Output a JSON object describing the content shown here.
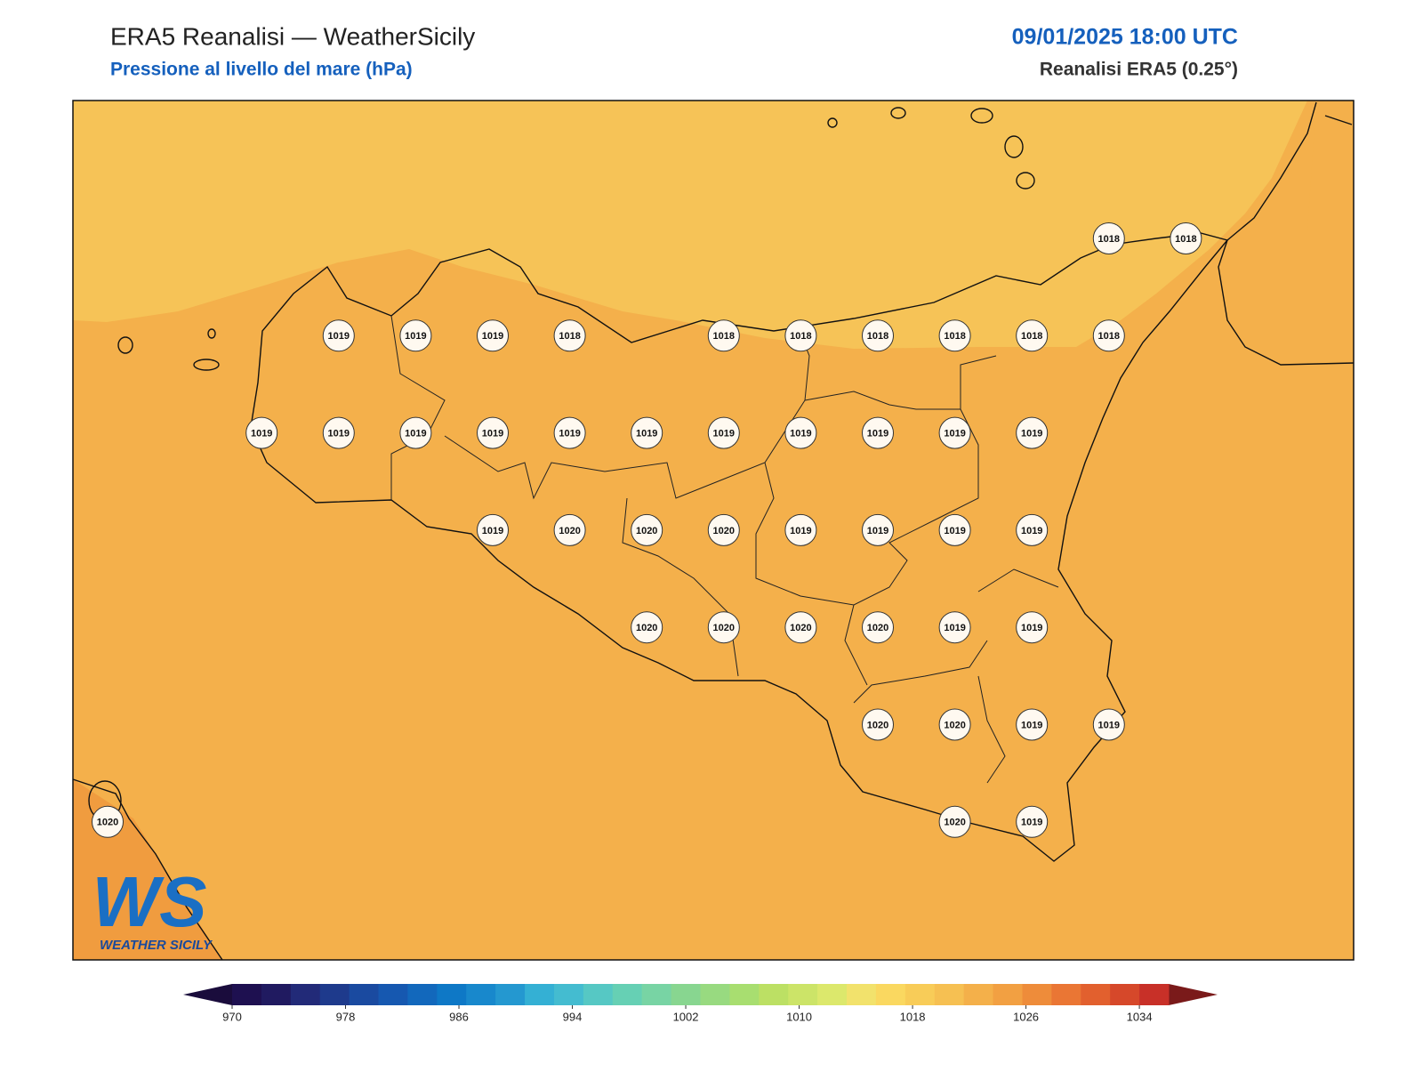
{
  "header": {
    "title": "ERA5 Reanalisi — WeatherSicily",
    "subtitle": "Pressione al livello del mare (hPa)",
    "datetime": "09/01/2025 18:00 UTC",
    "source": "Reanalisi ERA5 (0.25°)"
  },
  "pressure_labels": [
    1018,
    1018,
    1019,
    1019,
    1019,
    1018,
    1018,
    1018,
    1018,
    1018,
    1018,
    1018,
    1019,
    1019,
    1019,
    1019,
    1019,
    1019,
    1019,
    1019,
    1019,
    1019,
    1019,
    1019,
    1020,
    1020,
    1020,
    1019,
    1019,
    1019,
    1019,
    1020,
    1020,
    1020,
    1020,
    1019,
    1019,
    1020,
    1020,
    1019,
    1019,
    1020,
    1020,
    1019
  ],
  "colorbar": {
    "lim": [
      970,
      1034
    ],
    "ticks": [
      970,
      978,
      986,
      994,
      1002,
      1010,
      1018,
      1026,
      1034
    ],
    "colors": [
      "#1e1050",
      "#201a60",
      "#222a78",
      "#1e3a8c",
      "#1a4aa0",
      "#1658b0",
      "#1268bc",
      "#0e78c6",
      "#1888cc",
      "#2498d0",
      "#34b0d4",
      "#44bcd0",
      "#56c8c4",
      "#66d0b4",
      "#78d4a4",
      "#88d690",
      "#98da80",
      "#a8de70",
      "#bce064",
      "#cce468",
      "#dce86c",
      "#f2e26c",
      "#fad860",
      "#f8cc58",
      "#f6c052",
      "#f4b04a",
      "#f2a042",
      "#ee8c3a",
      "#ea7634",
      "#e2602e",
      "#d6482a",
      "#c83028"
    ],
    "extend_low_color": "#1a0c3c",
    "extend_high_color": "#7a1a1a"
  },
  "logo": {
    "mark": "WS",
    "text": "WEATHER SICILY"
  }
}
